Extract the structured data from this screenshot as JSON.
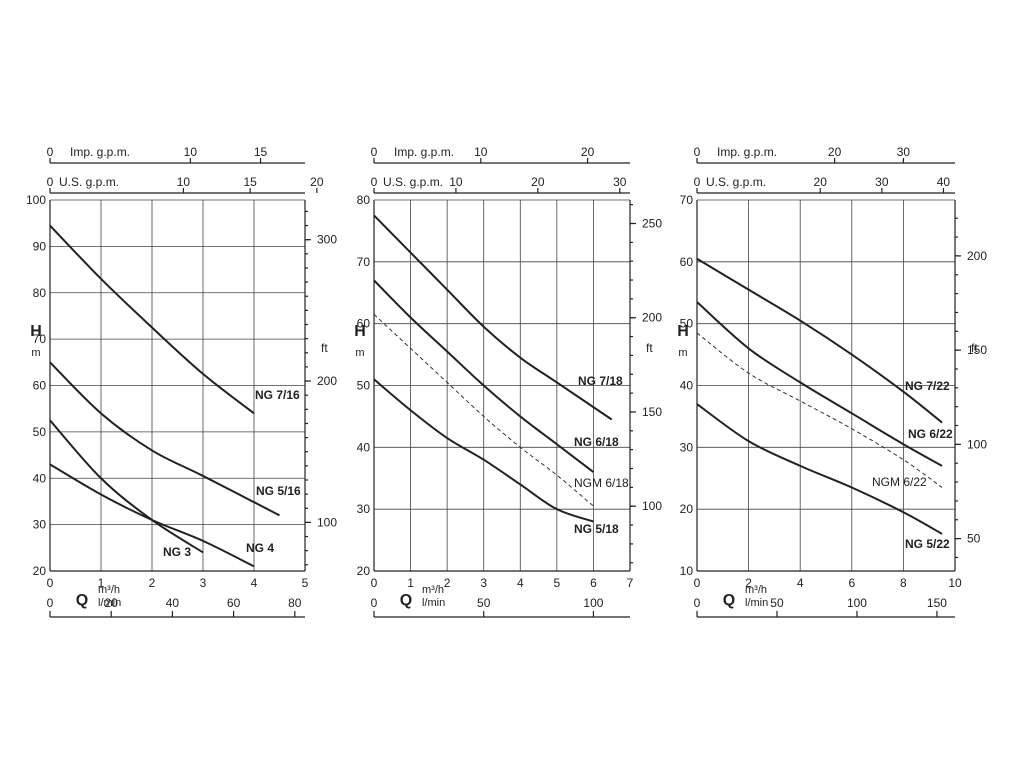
{
  "chart_data": [
    {
      "type": "line",
      "xlabel": "Q",
      "xunit": "m³/h",
      "xunit2": "l/min",
      "ylabel": "H",
      "yunit": "m",
      "y2unit": "ft",
      "xlim": [
        0,
        5
      ],
      "ylim": [
        20,
        100
      ],
      "grid": true,
      "x_ticks": [
        "0",
        "1",
        "2",
        "3",
        "4",
        "5"
      ],
      "y_ticks": [
        "20",
        "30",
        "40",
        "50",
        "60",
        "70",
        "80",
        "90",
        "100"
      ],
      "lmin_ticks": [
        {
          "value": 0,
          "label": "0"
        },
        {
          "value": 20,
          "label": "20"
        },
        {
          "value": 40,
          "label": "40"
        },
        {
          "value": 60,
          "label": "60"
        },
        {
          "value": 80,
          "label": "80"
        }
      ],
      "usgpm_label": "U.S. g.p.m.",
      "usgpm_ticks": [
        {
          "value": 0,
          "label": "0"
        },
        {
          "value": 10,
          "label": "10"
        },
        {
          "value": 15,
          "label": "15"
        },
        {
          "value": 20,
          "label": "20"
        }
      ],
      "impgpm_label": "Imp. g.p.m.",
      "impgpm_ticks": [
        {
          "value": 0,
          "label": "0"
        },
        {
          "value": 10,
          "label": "10"
        },
        {
          "value": 15,
          "label": "15"
        }
      ],
      "ft_ticks": [
        {
          "value": 100,
          "label": "100"
        },
        {
          "value": 200,
          "label": "200"
        },
        {
          "value": 300,
          "label": "300"
        }
      ],
      "series": [
        {
          "name": "NG 7/16",
          "dashed": false,
          "points": [
            [
              0,
              94.5
            ],
            [
              1,
              83
            ],
            [
              2,
              72.5
            ],
            [
              3,
              62.5
            ],
            [
              4,
              54
            ]
          ]
        },
        {
          "name": "NG 5/16",
          "dashed": false,
          "points": [
            [
              0,
              65
            ],
            [
              1,
              54
            ],
            [
              2,
              46
            ],
            [
              3,
              40.5
            ],
            [
              4.5,
              32
            ]
          ]
        },
        {
          "name": "NG 3",
          "dashed": false,
          "points": [
            [
              0,
              52.5
            ],
            [
              1,
              40
            ],
            [
              2,
              31
            ],
            [
              3,
              24
            ]
          ]
        },
        {
          "name": "NG 4",
          "dashed": false,
          "points": [
            [
              0,
              43
            ],
            [
              1,
              36.5
            ],
            [
              2,
              31
            ],
            [
              3,
              26.5
            ],
            [
              4,
              21
            ]
          ]
        }
      ]
    },
    {
      "type": "line",
      "xlabel": "Q",
      "xunit": "m³/h",
      "xunit2": "l/min",
      "ylabel": "H",
      "yunit": "m",
      "y2unit": "ft",
      "xlim": [
        0,
        7
      ],
      "ylim": [
        20,
        80
      ],
      "grid": true,
      "x_ticks": [
        "0",
        "1",
        "2",
        "3",
        "4",
        "5",
        "6",
        "7"
      ],
      "y_ticks": [
        "20",
        "30",
        "40",
        "50",
        "60",
        "70",
        "80"
      ],
      "lmin_ticks": [
        {
          "value": 0,
          "label": "0"
        },
        {
          "value": 50,
          "label": "50"
        },
        {
          "value": 100,
          "label": "100"
        }
      ],
      "usgpm_label": "U.S. g.p.m.",
      "usgpm_ticks": [
        {
          "value": 0,
          "label": "0"
        },
        {
          "value": 10,
          "label": "10"
        },
        {
          "value": 20,
          "label": "20"
        },
        {
          "value": 30,
          "label": "30"
        }
      ],
      "impgpm_label": "Imp. g.p.m.",
      "impgpm_ticks": [
        {
          "value": 0,
          "label": "0"
        },
        {
          "value": 10,
          "label": "10"
        },
        {
          "value": 20,
          "label": "20"
        }
      ],
      "ft_ticks": [
        {
          "value": 100,
          "label": "100"
        },
        {
          "value": 150,
          "label": "150"
        },
        {
          "value": 200,
          "label": "200"
        },
        {
          "value": 250,
          "label": "250"
        }
      ],
      "series": [
        {
          "name": "NG 7/18",
          "dashed": false,
          "points": [
            [
              0,
              77.5
            ],
            [
              1,
              71.5
            ],
            [
              2,
              65.5
            ],
            [
              3,
              59.5
            ],
            [
              4,
              54.5
            ],
            [
              5,
              50.5
            ],
            [
              6.5,
              44.5
            ]
          ]
        },
        {
          "name": "NG 6/18",
          "dashed": false,
          "points": [
            [
              0,
              67
            ],
            [
              1,
              61
            ],
            [
              2,
              55.5
            ],
            [
              3,
              50
            ],
            [
              4,
              45
            ],
            [
              5,
              40.5
            ],
            [
              6,
              36
            ]
          ]
        },
        {
          "name": "NGM 6/18",
          "dashed": true,
          "points": [
            [
              0,
              61.5
            ],
            [
              1,
              56
            ],
            [
              2,
              50.5
            ],
            [
              3,
              45
            ],
            [
              4,
              40
            ],
            [
              5,
              35.5
            ],
            [
              6,
              30.5
            ]
          ]
        },
        {
          "name": "NG 5/18",
          "dashed": false,
          "points": [
            [
              0,
              51
            ],
            [
              1,
              46
            ],
            [
              2,
              41.5
            ],
            [
              3,
              38
            ],
            [
              4,
              34
            ],
            [
              5,
              30
            ],
            [
              6,
              28
            ]
          ]
        }
      ]
    },
    {
      "type": "line",
      "xlabel": "Q",
      "xunit": "m³/h",
      "xunit2": "l/min",
      "ylabel": "H",
      "yunit": "m",
      "y2unit": "ft",
      "xlim": [
        0,
        10
      ],
      "ylim": [
        10,
        70
      ],
      "grid": true,
      "x_ticks": [
        "0",
        "2",
        "4",
        "6",
        "8",
        "10"
      ],
      "y_ticks": [
        "10",
        "20",
        "30",
        "40",
        "50",
        "60",
        "70"
      ],
      "lmin_ticks": [
        {
          "value": 0,
          "label": "0"
        },
        {
          "value": 50,
          "label": "50"
        },
        {
          "value": 100,
          "label": "100"
        },
        {
          "value": 150,
          "label": "150"
        }
      ],
      "usgpm_label": "U.S. g.p.m.",
      "usgpm_ticks": [
        {
          "value": 0,
          "label": "0"
        },
        {
          "value": 20,
          "label": "20"
        },
        {
          "value": 30,
          "label": "30"
        },
        {
          "value": 40,
          "label": "40"
        }
      ],
      "impgpm_label": "Imp. g.p.m.",
      "impgpm_ticks": [
        {
          "value": 0,
          "label": "0"
        },
        {
          "value": 20,
          "label": "20"
        },
        {
          "value": 30,
          "label": "30"
        }
      ],
      "ft_ticks": [
        {
          "value": 50,
          "label": "50"
        },
        {
          "value": 100,
          "label": "100"
        },
        {
          "value": 150,
          "label": "150"
        },
        {
          "value": 200,
          "label": "200"
        }
      ],
      "series": [
        {
          "name": "NG 7/22",
          "dashed": false,
          "points": [
            [
              0,
              60.5
            ],
            [
              2,
              55.5
            ],
            [
              4,
              50.5
            ],
            [
              6,
              45
            ],
            [
              8,
              39
            ],
            [
              9.5,
              34
            ]
          ]
        },
        {
          "name": "NG 6/22",
          "dashed": false,
          "points": [
            [
              0,
              53.5
            ],
            [
              2,
              46
            ],
            [
              4,
              40.5
            ],
            [
              6,
              35.5
            ],
            [
              8,
              30.5
            ],
            [
              9.5,
              27
            ]
          ]
        },
        {
          "name": "NGM 6/22",
          "dashed": true,
          "points": [
            [
              0,
              48.5
            ],
            [
              2,
              42
            ],
            [
              4,
              37.5
            ],
            [
              6,
              33
            ],
            [
              8,
              28
            ],
            [
              9.5,
              23.5
            ]
          ]
        },
        {
          "name": "NG 5/22",
          "dashed": false,
          "points": [
            [
              0,
              37
            ],
            [
              2,
              31
            ],
            [
              4,
              27
            ],
            [
              6,
              23.5
            ],
            [
              8,
              19.5
            ],
            [
              9.5,
              16
            ]
          ]
        }
      ]
    }
  ]
}
